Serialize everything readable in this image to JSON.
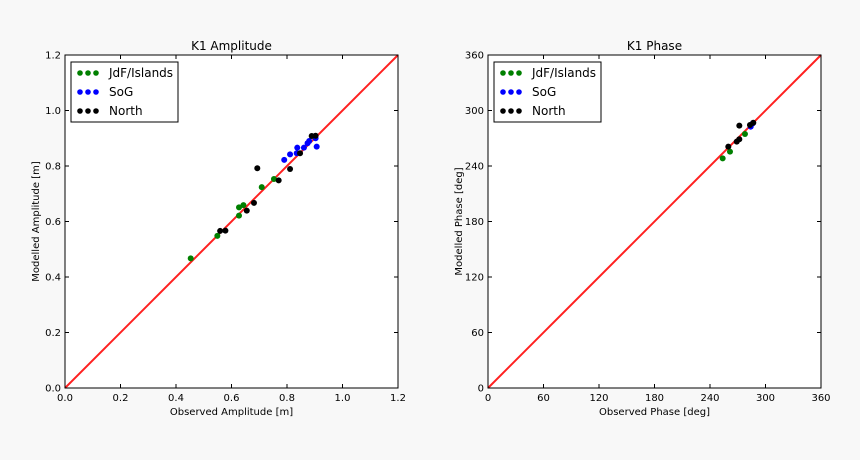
{
  "chart_data": [
    {
      "type": "scatter",
      "title": "K1 Amplitude",
      "xlabel": "Observed Amplitude [m]",
      "ylabel": "Modelled Amplitude [m]",
      "xlim": [
        0,
        1.2
      ],
      "ylim": [
        0,
        1.2
      ],
      "xticks": [
        "0.0",
        "0.2",
        "0.4",
        "0.6",
        "0.8",
        "1.0",
        "1.2"
      ],
      "yticks": [
        "0.0",
        "0.2",
        "0.4",
        "0.6",
        "0.8",
        "1.0",
        "1.2"
      ],
      "tickvals": [
        0,
        0.2,
        0.4,
        0.6,
        0.8,
        1.0,
        1.2
      ],
      "legend_position": "top-left",
      "grid": false,
      "reference_line": {
        "from": [
          0,
          0
        ],
        "to": [
          1.2,
          1.2
        ],
        "color": "#ff2020"
      },
      "series": [
        {
          "name": "JdF/Islands",
          "color": "#008000",
          "points": [
            [
              0.453,
              0.467
            ],
            [
              0.549,
              0.548
            ],
            [
              0.627,
              0.621
            ],
            [
              0.627,
              0.651
            ],
            [
              0.643,
              0.659
            ],
            [
              0.709,
              0.724
            ],
            [
              0.753,
              0.753
            ]
          ]
        },
        {
          "name": "SoG",
          "color": "#0000ff",
          "points": [
            [
              0.79,
              0.822
            ],
            [
              0.811,
              0.842
            ],
            [
              0.837,
              0.866
            ],
            [
              0.835,
              0.846
            ],
            [
              0.861,
              0.866
            ],
            [
              0.874,
              0.882
            ],
            [
              0.88,
              0.89
            ],
            [
              0.907,
              0.87
            ],
            [
              0.903,
              0.9
            ]
          ]
        },
        {
          "name": "North",
          "color": "#000000",
          "points": [
            [
              0.559,
              0.566
            ],
            [
              0.578,
              0.567
            ],
            [
              0.655,
              0.639
            ],
            [
              0.681,
              0.667
            ],
            [
              0.693,
              0.792
            ],
            [
              0.77,
              0.748
            ],
            [
              0.811,
              0.789
            ],
            [
              0.847,
              0.846
            ],
            [
              0.889,
              0.908
            ],
            [
              0.903,
              0.909
            ]
          ]
        }
      ]
    },
    {
      "type": "scatter",
      "title": "K1 Phase",
      "xlabel": "Observed Phase [deg]",
      "ylabel": "Modelled Phase [deg]",
      "xlim": [
        0,
        360
      ],
      "ylim": [
        0,
        360
      ],
      "xticks": [
        "0",
        "60",
        "120",
        "180",
        "240",
        "300",
        "360"
      ],
      "yticks": [
        "0",
        "60",
        "120",
        "180",
        "240",
        "300",
        "360"
      ],
      "tickvals": [
        0,
        60,
        120,
        180,
        240,
        300,
        360
      ],
      "legend_position": "top-left",
      "grid": false,
      "reference_line": {
        "from": [
          0,
          0
        ],
        "to": [
          360,
          360
        ],
        "color": "#ff2020"
      },
      "series": [
        {
          "name": "JdF/Islands",
          "color": "#008000",
          "points": [
            [
              253.7,
              248.3
            ],
            [
              261.6,
              255.5
            ],
            [
              277.8,
              274.6
            ]
          ]
        },
        {
          "name": "SoG",
          "color": "#0000ff",
          "points": [
            [
              286.2,
              286.1
            ],
            [
              284.0,
              282.5
            ]
          ]
        },
        {
          "name": "North",
          "color": "#000000",
          "points": [
            [
              271.7,
              283.6
            ],
            [
              259.8,
              260.9
            ],
            [
              268.9,
              266.3
            ],
            [
              271.7,
              268.9
            ],
            [
              283.2,
              284.3
            ],
            [
              286.8,
              286.8
            ]
          ]
        }
      ]
    }
  ]
}
